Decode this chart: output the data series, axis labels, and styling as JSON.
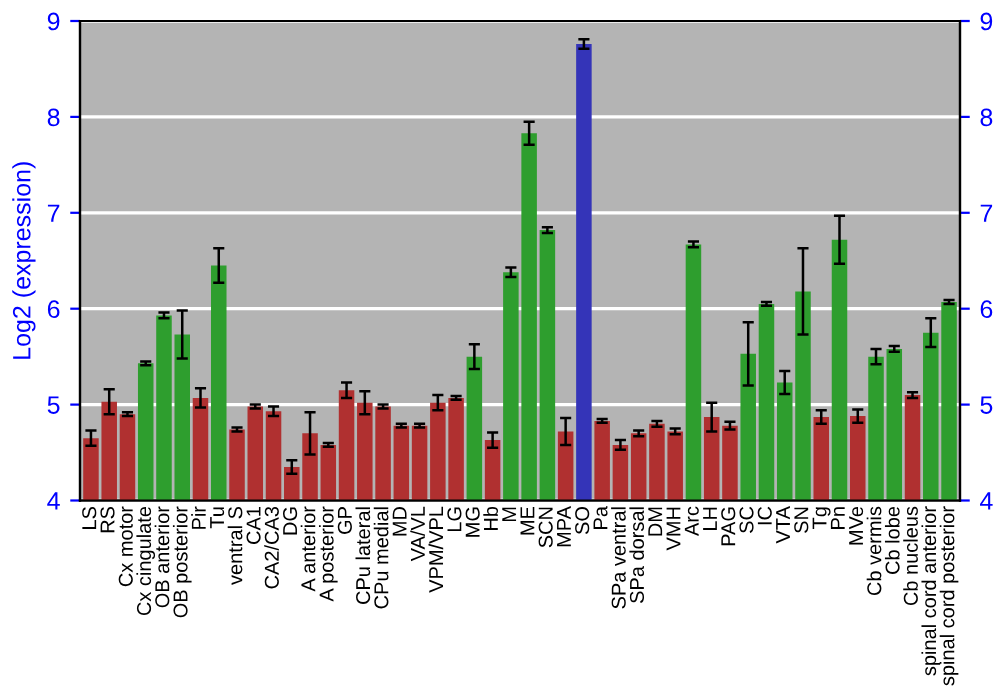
{
  "chart_data": {
    "type": "bar",
    "ylabel": "Log2 (expression)",
    "categories": [
      "LS",
      "RS",
      "Cx motor",
      "Cx cingulate",
      "OB anterior",
      "OB posterior",
      "Pir",
      "Tu",
      "ventral S",
      "CA1",
      "CA2/CA3",
      "DG",
      "A anterior",
      "A posterior",
      "GP",
      "CPu lateral",
      "CPu medial",
      "MD",
      "VA/VL",
      "VPM/VPL",
      "LG",
      "MG",
      "Hb",
      "M",
      "ME",
      "SCN",
      "MPA",
      "SO",
      "Pa",
      "SPa ventral",
      "SPa dorsal",
      "DM",
      "VMH",
      "Arc",
      "LH",
      "PAG",
      "SC",
      "IC",
      "VTA",
      "SN",
      "Tg",
      "Pn",
      "MVe",
      "Cb vermis",
      "Cb lobe",
      "Cb nucleus",
      "spinal cord anterior",
      "spinal cord posterior"
    ],
    "values": [
      4.65,
      5.03,
      4.9,
      5.43,
      5.93,
      5.73,
      5.07,
      6.45,
      4.74,
      4.98,
      4.93,
      4.35,
      4.7,
      4.58,
      5.15,
      5.02,
      4.98,
      4.78,
      4.78,
      5.02,
      5.07,
      5.5,
      4.63,
      6.38,
      7.83,
      6.82,
      4.72,
      8.76,
      4.83,
      4.58,
      4.7,
      4.8,
      4.72,
      6.67,
      4.87,
      4.78,
      5.53,
      6.05,
      5.23,
      6.18,
      4.87,
      6.72,
      4.88,
      5.5,
      5.58,
      5.1,
      5.75,
      6.07
    ],
    "errors": [
      0.08,
      0.13,
      0.02,
      0.02,
      0.03,
      0.25,
      0.1,
      0.18,
      0.02,
      0.02,
      0.05,
      0.07,
      0.22,
      0.02,
      0.08,
      0.12,
      0.02,
      0.02,
      0.02,
      0.08,
      0.02,
      0.13,
      0.08,
      0.05,
      0.12,
      0.03,
      0.14,
      0.05,
      0.02,
      0.05,
      0.03,
      0.03,
      0.03,
      0.03,
      0.15,
      0.04,
      0.33,
      0.02,
      0.12,
      0.45,
      0.07,
      0.25,
      0.07,
      0.08,
      0.03,
      0.03,
      0.15,
      0.02
    ],
    "colors": [
      "#b03030",
      "#b03030",
      "#b03030",
      "#2e9e2e",
      "#2e9e2e",
      "#2e9e2e",
      "#b03030",
      "#2e9e2e",
      "#b03030",
      "#b03030",
      "#b03030",
      "#b03030",
      "#b03030",
      "#b03030",
      "#b03030",
      "#b03030",
      "#b03030",
      "#b03030",
      "#b03030",
      "#b03030",
      "#b03030",
      "#2e9e2e",
      "#b03030",
      "#2e9e2e",
      "#2e9e2e",
      "#2e9e2e",
      "#b03030",
      "#3434b8",
      "#b03030",
      "#b03030",
      "#b03030",
      "#b03030",
      "#b03030",
      "#2e9e2e",
      "#b03030",
      "#b03030",
      "#2e9e2e",
      "#2e9e2e",
      "#2e9e2e",
      "#2e9e2e",
      "#b03030",
      "#2e9e2e",
      "#b03030",
      "#2e9e2e",
      "#2e9e2e",
      "#b03030",
      "#2e9e2e",
      "#2e9e2e"
    ],
    "ylim": [
      4,
      9
    ],
    "yticks": [
      4,
      5,
      6,
      7,
      8,
      9
    ],
    "y2lim": [
      4,
      9
    ],
    "y2ticks": [
      4,
      5,
      6,
      7,
      8,
      9
    ],
    "grid": "y"
  }
}
